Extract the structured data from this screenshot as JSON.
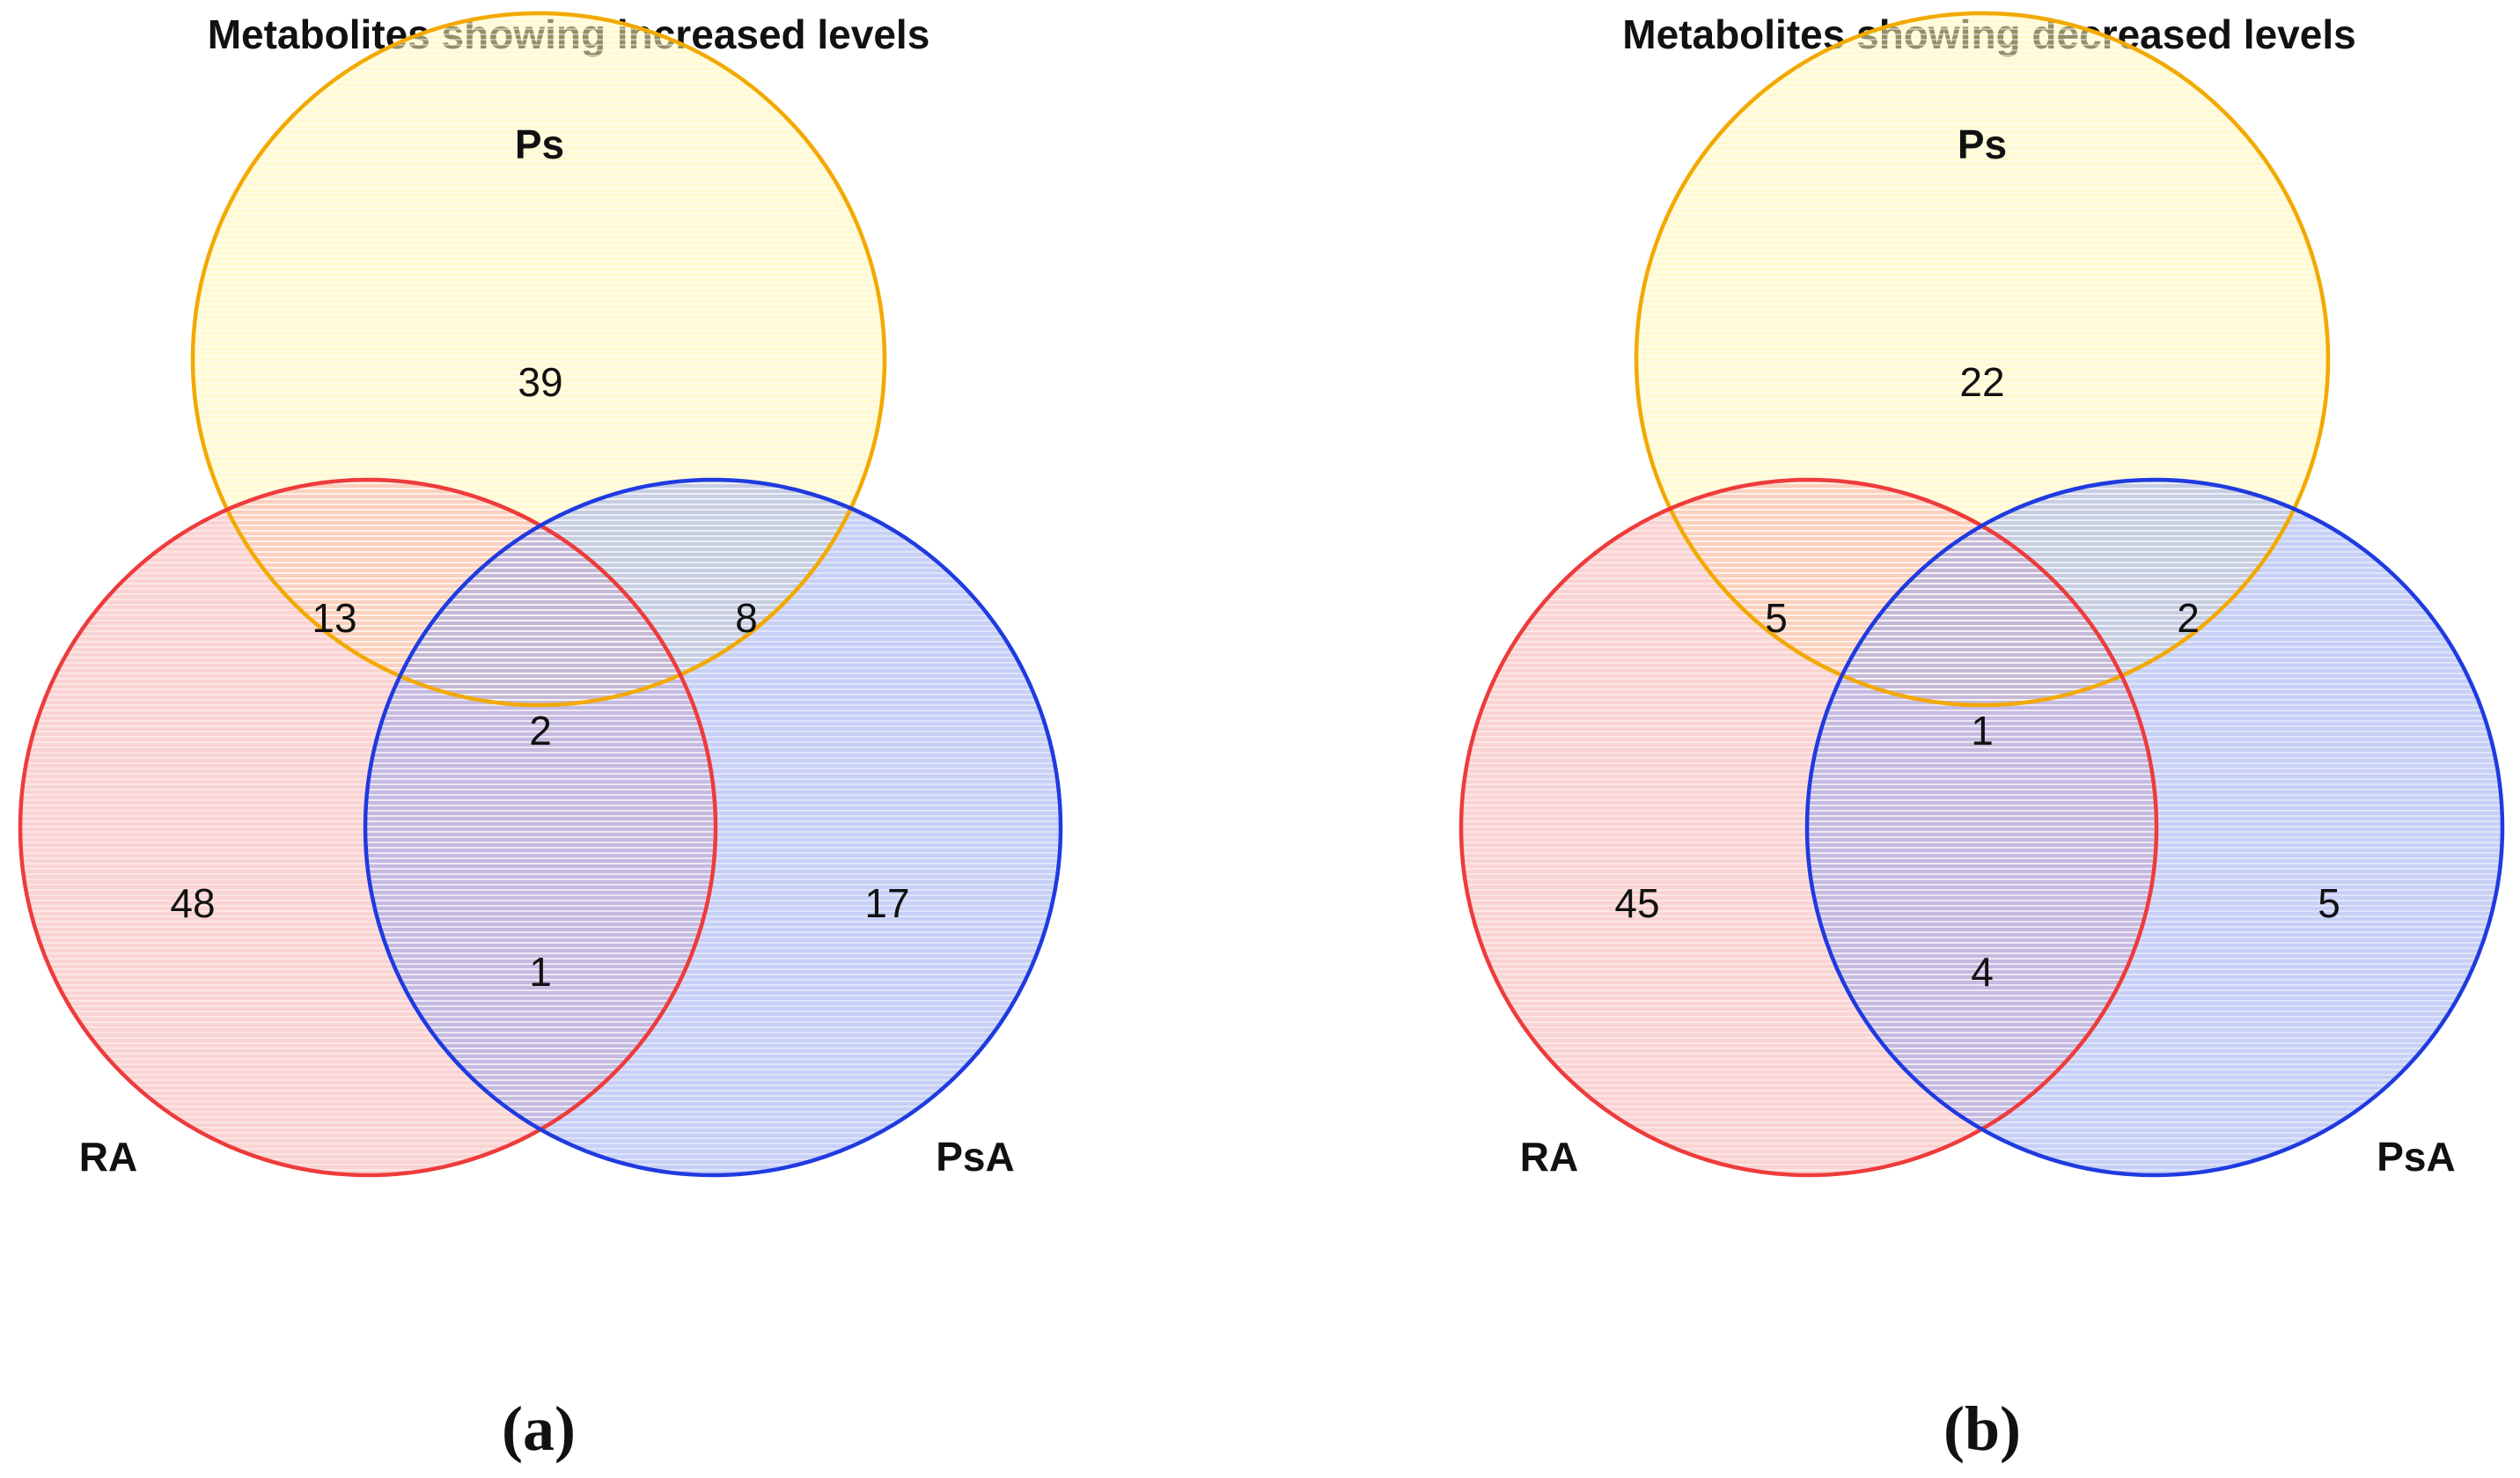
{
  "diagrams": [
    {
      "id": "a",
      "title": "Metabolites showing increased levels",
      "panel_label": "(a)",
      "sets": {
        "ps": {
          "label": "Ps",
          "color": "#f2a900",
          "fill": "#fff6b0"
        },
        "ra": {
          "label": "RA",
          "color": "#ee3b3b",
          "fill": "#f6a8a8"
        },
        "psa": {
          "label": "PsA",
          "color": "#1f3be0",
          "fill": "#8fa2ee"
        }
      },
      "regions": {
        "ps_only": "39",
        "ra_ps": "13",
        "ps_psa": "8",
        "all": "2",
        "ra_only": "48",
        "psa_only": "17",
        "ra_psa": "1"
      }
    },
    {
      "id": "b",
      "title": "Metabolites showing decreased levels",
      "panel_label": "(b)",
      "sets": {
        "ps": {
          "label": "Ps",
          "color": "#f2a900",
          "fill": "#fff6b0"
        },
        "ra": {
          "label": "RA",
          "color": "#ee3b3b",
          "fill": "#f6a8a8"
        },
        "psa": {
          "label": "PsA",
          "color": "#1f3be0",
          "fill": "#8fa2ee"
        }
      },
      "regions": {
        "ps_only": "22",
        "ra_ps": "5",
        "ps_psa": "2",
        "all": "1",
        "ra_only": "45",
        "psa_only": "5",
        "ra_psa": "4"
      }
    }
  ]
}
